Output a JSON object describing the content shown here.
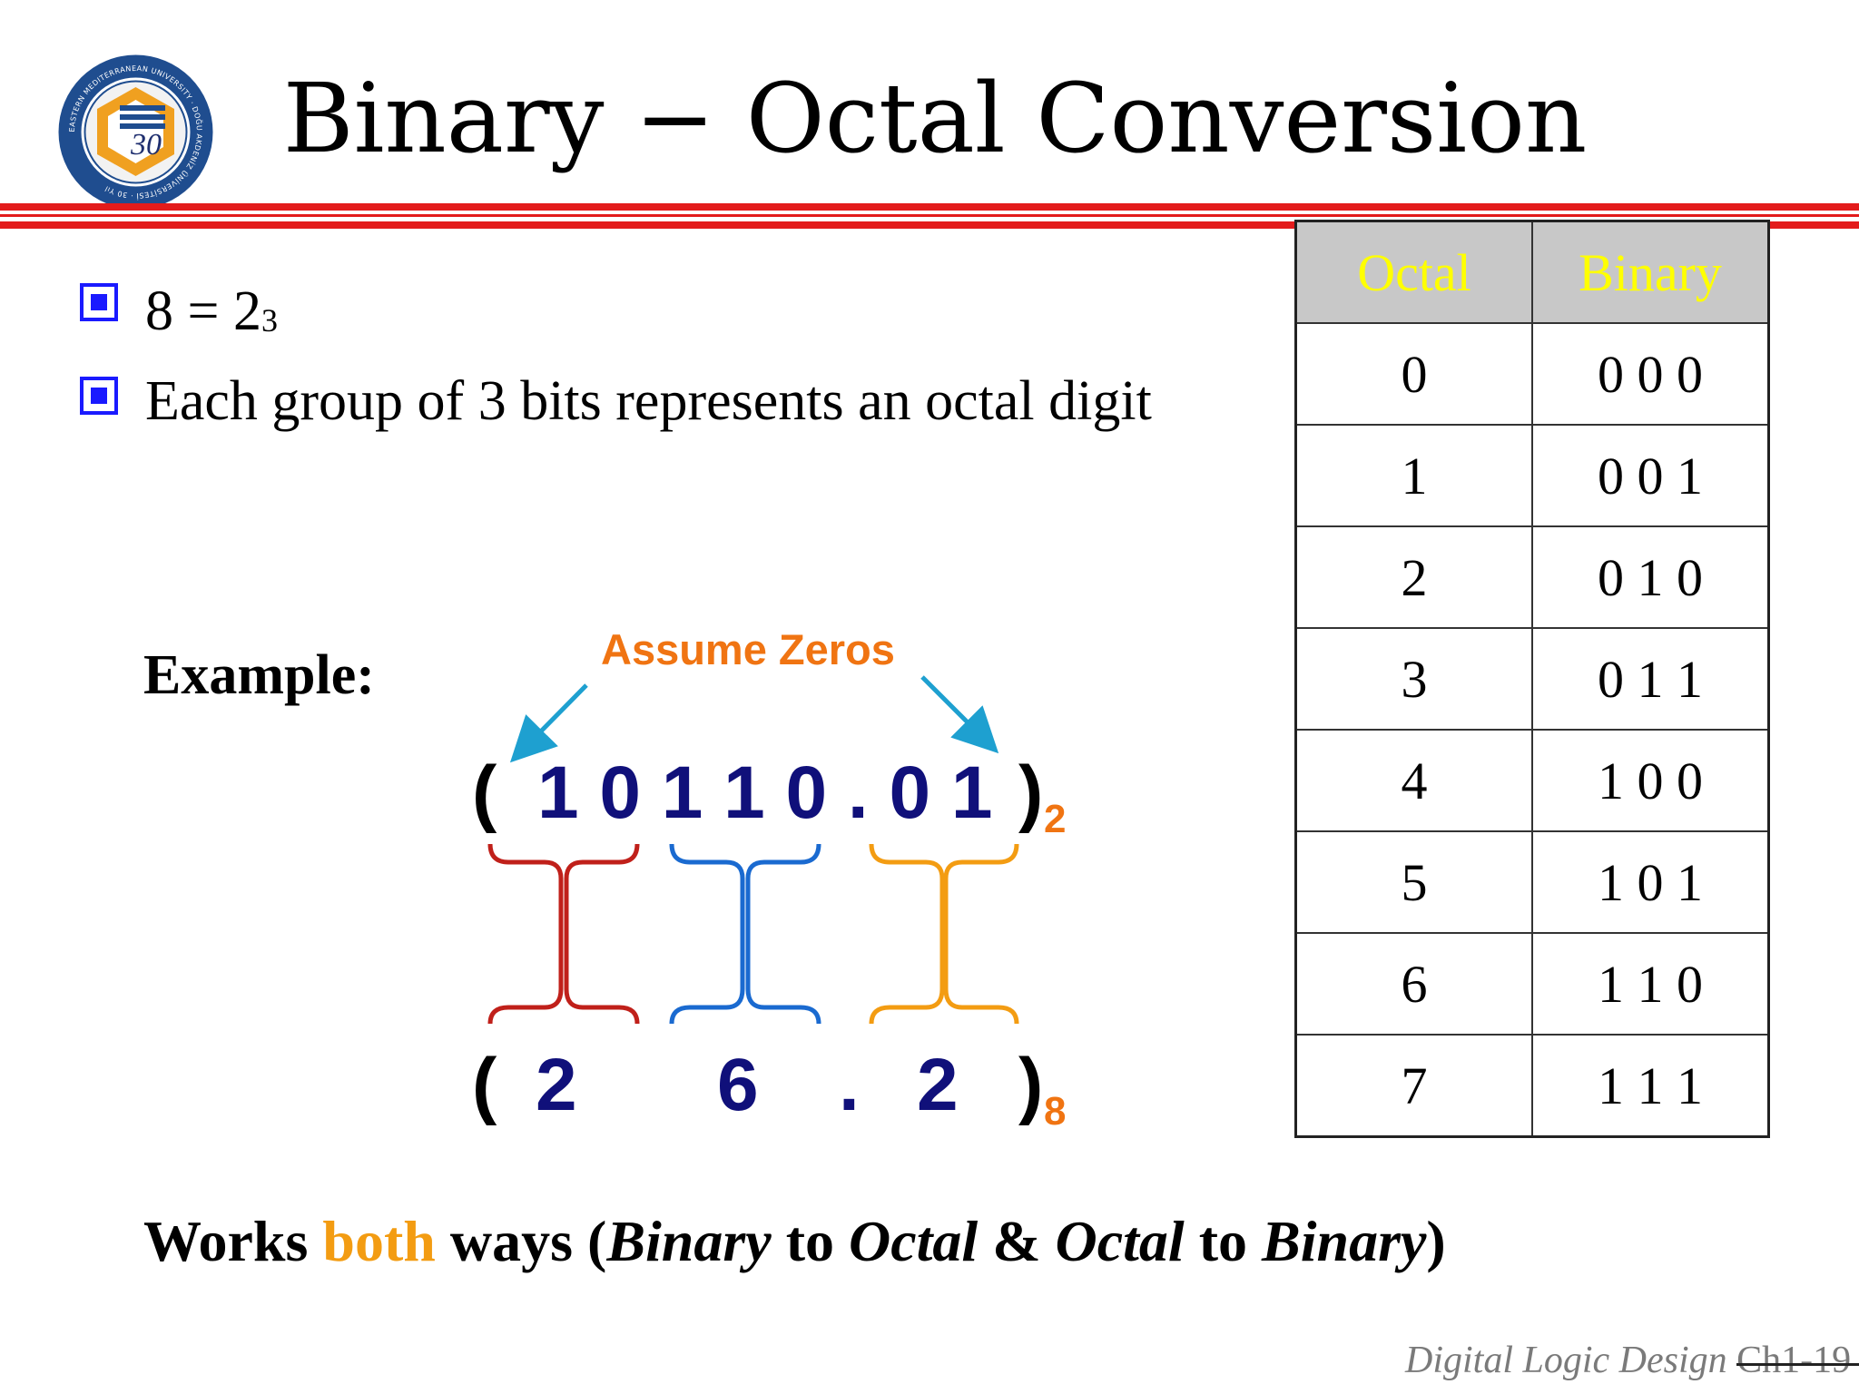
{
  "slide": {
    "title": "Binary − Octal Conversion",
    "logo_text": "EASTERN MEDITERRANEAN UNIVERSITY · DOĞU AKDENİZ ÜNİVERSİTESİ · 30 Yıl"
  },
  "bullets": [
    {
      "text_base": "8 = 2",
      "text_sup": "3"
    },
    {
      "text": "Each group of 3 bits represents an octal digit"
    }
  ],
  "example": {
    "label": "Example:",
    "annotation": "Assume Zeros",
    "binary_open": "(",
    "binary_digits": "1 0 1 1 0 . 0 1",
    "binary_close": ")",
    "binary_base": "2",
    "octal_open": "(",
    "octal_d1": "2",
    "octal_d2": "6",
    "octal_dot": ".",
    "octal_d3": "2",
    "octal_close": ")",
    "octal_base": "8"
  },
  "table": {
    "headers": [
      "Octal",
      "Binary"
    ],
    "rows": [
      [
        "0",
        "0 0 0"
      ],
      [
        "1",
        "0 0 1"
      ],
      [
        "2",
        "0 1 0"
      ],
      [
        "3",
        "0 1 1"
      ],
      [
        "4",
        "1 0 0"
      ],
      [
        "5",
        "1 0 1"
      ],
      [
        "6",
        "1 1 0"
      ],
      [
        "7",
        "1 1 1"
      ]
    ]
  },
  "footer_note": {
    "p1": "Works ",
    "highlight": "both",
    "p2": " ways (",
    "i1": "Binary",
    "p3": " to ",
    "i2": "Octal",
    "p4": " & ",
    "i3": "Octal",
    "p5": " to ",
    "i4": "Binary",
    "p6": ")"
  },
  "footer": {
    "course": "Digital Logic Design",
    "page": "Ch1-19"
  },
  "colors": {
    "accent_red": "#e31b1b",
    "bullet_blue": "#1a1aff",
    "digit_navy": "#10107a",
    "orange": "#f07412",
    "arrow_cyan": "#1ea0d0",
    "brace_red": "#c0201a",
    "brace_blue": "#1a6ad0",
    "brace_orange": "#f39c12",
    "table_header_text": "#ffff00"
  }
}
